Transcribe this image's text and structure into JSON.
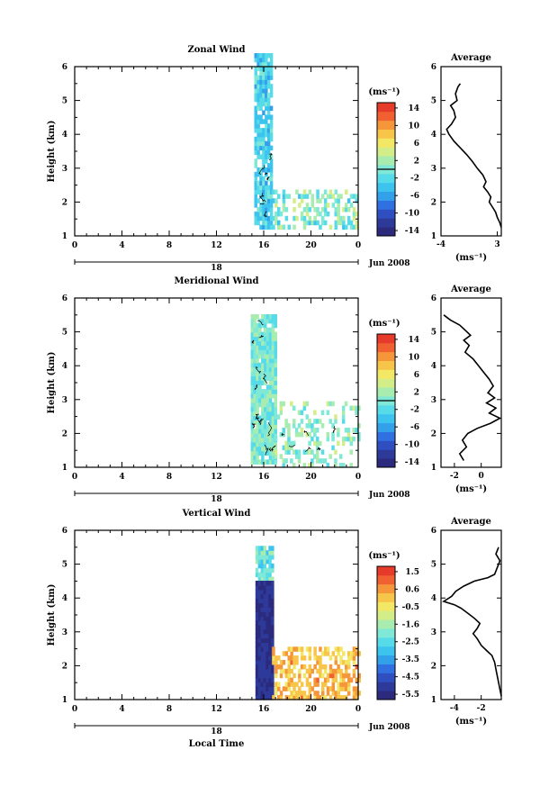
{
  "figure": {
    "bottom_xlabel": "Local Time"
  },
  "colormap": [
    "#2b2a7c",
    "#2d3a9a",
    "#2f4fc0",
    "#3070e0",
    "#33a0ea",
    "#3dc4ee",
    "#57dbe8",
    "#7fe8d6",
    "#a8ecb0",
    "#d3ee88",
    "#f2e866",
    "#f7c54a",
    "#f5963a",
    "#f06030",
    "#e63a2a"
  ],
  "colors": {
    "contour": "#000000",
    "axis": "#000000"
  },
  "chart_data": [
    {
      "type": "heatmap",
      "title": "Zonal Wind",
      "ylabel": "Height (km)",
      "ylim": [
        1,
        6
      ],
      "yticks": [
        "1",
        "2",
        "3",
        "4",
        "5",
        "6"
      ],
      "xlim": [
        0,
        24
      ],
      "xticks": [
        "0",
        "4",
        "8",
        "12",
        "16",
        "20",
        "0"
      ],
      "date_axis": {
        "day": "18",
        "month_label": "Jun 2008"
      },
      "colorbar": {
        "unit": "(ms⁻¹)",
        "ticks": [
          "14",
          "10",
          "6",
          "2",
          "-2",
          "-6",
          "-10",
          "-14"
        ],
        "range": [
          -16,
          16
        ],
        "zero_line": 0
      },
      "fields": [
        {
          "t0": 15.2,
          "t1": 16.7,
          "h0": 1.2,
          "h1": 6.4,
          "base": -3,
          "amp": 3,
          "mask": 0.85
        },
        {
          "t0": 16.7,
          "t1": 23.8,
          "h0": 1.2,
          "h1": 2.3,
          "base": 0,
          "amp": 4,
          "mask": 0.45
        }
      ],
      "contours": [
        {
          "t0": 15.5,
          "t1": 16.6,
          "h0": 1.4,
          "h1": 3.3,
          "n": 8
        }
      ],
      "average": {
        "title": "Average",
        "xlabel": "(ms⁻¹)",
        "xlim": [
          -4,
          3.5
        ],
        "xticks": [
          "-4",
          "3"
        ],
        "xtick_values": [
          -4,
          3
        ],
        "ylim": [
          1,
          6
        ],
        "yticks": [
          "1",
          "2",
          "3",
          "4",
          "5",
          "6"
        ],
        "profile": [
          [
            -1.6,
            5.5
          ],
          [
            -1.9,
            5.4
          ],
          [
            -2.2,
            5.2
          ],
          [
            -2.0,
            5.0
          ],
          [
            -2.8,
            4.85
          ],
          [
            -2.4,
            4.7
          ],
          [
            -2.2,
            4.5
          ],
          [
            -2.7,
            4.3
          ],
          [
            -3.3,
            4.15
          ],
          [
            -3.0,
            4.0
          ],
          [
            -2.4,
            3.8
          ],
          [
            -1.6,
            3.6
          ],
          [
            -0.8,
            3.4
          ],
          [
            -0.1,
            3.2
          ],
          [
            0.5,
            3.0
          ],
          [
            1.2,
            2.8
          ],
          [
            1.6,
            2.6
          ],
          [
            1.3,
            2.45
          ],
          [
            1.8,
            2.3
          ],
          [
            2.2,
            2.15
          ],
          [
            2.0,
            2.0
          ],
          [
            2.4,
            1.85
          ],
          [
            2.8,
            1.7
          ],
          [
            3.0,
            1.55
          ],
          [
            3.3,
            1.4
          ],
          [
            3.5,
            1.25
          ]
        ]
      }
    },
    {
      "type": "heatmap",
      "title": "Meridional Wind",
      "ylabel": "Height (km)",
      "ylim": [
        1,
        6
      ],
      "yticks": [
        "1",
        "2",
        "3",
        "4",
        "5",
        "6"
      ],
      "xlim": [
        0,
        24
      ],
      "xticks": [
        "0",
        "4",
        "8",
        "12",
        "16",
        "20",
        "0"
      ],
      "date_axis": {
        "day": "18",
        "month_label": "Jun 2008"
      },
      "colorbar": {
        "unit": "(ms⁻¹)",
        "ticks": [
          "14",
          "10",
          "6",
          "2",
          "-2",
          "-6",
          "-10",
          "-14"
        ],
        "range": [
          -16,
          16
        ],
        "zero_line": 0
      },
      "fields": [
        {
          "t0": 14.9,
          "t1": 16.9,
          "h0": 1.1,
          "h1": 5.5,
          "base": 0,
          "amp": 3,
          "mask": 0.95
        },
        {
          "t0": 16.9,
          "t1": 24.0,
          "h0": 1.0,
          "h1": 2.9,
          "base": 1,
          "amp": 3,
          "mask": 0.3
        }
      ],
      "contours": [
        {
          "t0": 15.1,
          "t1": 16.8,
          "h0": 1.2,
          "h1": 5.4,
          "n": 14
        },
        {
          "t0": 17.5,
          "t1": 22.0,
          "h0": 1.2,
          "h1": 2.2,
          "n": 6
        }
      ],
      "average": {
        "title": "Average",
        "xlabel": "(ms⁻¹)",
        "xlim": [
          -3,
          1.5
        ],
        "xticks": [
          "-2",
          "0"
        ],
        "xtick_values": [
          -2,
          0
        ],
        "ylim": [
          1,
          6
        ],
        "yticks": [
          "1",
          "2",
          "3",
          "4",
          "5",
          "6"
        ],
        "profile": [
          [
            -2.8,
            5.5
          ],
          [
            -2.3,
            5.35
          ],
          [
            -1.6,
            5.2
          ],
          [
            -1.2,
            5.05
          ],
          [
            -0.8,
            4.9
          ],
          [
            -1.3,
            4.75
          ],
          [
            -0.9,
            4.6
          ],
          [
            -1.2,
            4.4
          ],
          [
            -0.6,
            4.2
          ],
          [
            -0.2,
            4.0
          ],
          [
            0.2,
            3.8
          ],
          [
            0.6,
            3.6
          ],
          [
            0.9,
            3.4
          ],
          [
            0.5,
            3.2
          ],
          [
            1.0,
            3.05
          ],
          [
            0.4,
            2.9
          ],
          [
            1.1,
            2.75
          ],
          [
            0.6,
            2.6
          ],
          [
            1.4,
            2.45
          ],
          [
            0.7,
            2.3
          ],
          [
            -0.3,
            2.15
          ],
          [
            -1.0,
            2.0
          ],
          [
            -1.4,
            1.8
          ],
          [
            -1.1,
            1.6
          ],
          [
            -1.6,
            1.4
          ],
          [
            -1.3,
            1.2
          ]
        ]
      }
    },
    {
      "type": "heatmap",
      "title": "Vertical Wind",
      "ylabel": "Height (km)",
      "ylim": [
        1,
        6
      ],
      "yticks": [
        "1",
        "2",
        "3",
        "4",
        "5",
        "6"
      ],
      "xlim": [
        0,
        24
      ],
      "xticks": [
        "0",
        "4",
        "8",
        "12",
        "16",
        "20",
        "0"
      ],
      "xlabel": "Local Time",
      "date_axis": {
        "day": "18",
        "month_label": "Jun 2008"
      },
      "colorbar": {
        "unit": "(ms⁻¹)",
        "ticks": [
          "1.5",
          "0.6",
          "-0.5",
          "-1.6",
          "-2.5",
          "-3.5",
          "-4.5",
          "-5.5"
        ],
        "range": [
          -6,
          2
        ]
      },
      "fields": [
        {
          "t0": 15.3,
          "t1": 16.7,
          "h0": 4.5,
          "h1": 5.5,
          "base": -2.3,
          "amp": 0.8,
          "mask": 0.9
        },
        {
          "t0": 15.3,
          "t1": 16.7,
          "h0": 1.0,
          "h1": 4.5,
          "base": -5.4,
          "amp": 0.4,
          "mask": 1.0
        },
        {
          "t0": 16.7,
          "t1": 24.0,
          "h0": 1.0,
          "h1": 2.5,
          "base": 0.3,
          "amp": 0.7,
          "mask": 0.55
        }
      ],
      "contours": [],
      "average": {
        "title": "Average",
        "xlabel": "(ms⁻¹)",
        "xlim": [
          -5,
          -0.5
        ],
        "xticks": [
          "-4",
          "-2"
        ],
        "xtick_values": [
          -4,
          -2
        ],
        "ylim": [
          1,
          6
        ],
        "yticks": [
          "1",
          "2",
          "3",
          "4",
          "5",
          "6"
        ],
        "profile": [
          [
            -0.7,
            5.5
          ],
          [
            -0.9,
            5.3
          ],
          [
            -0.6,
            5.1
          ],
          [
            -0.8,
            4.9
          ],
          [
            -1.0,
            4.7
          ],
          [
            -1.5,
            4.6
          ],
          [
            -2.5,
            4.5
          ],
          [
            -3.3,
            4.35
          ],
          [
            -3.9,
            4.2
          ],
          [
            -4.2,
            4.05
          ],
          [
            -4.8,
            3.9
          ],
          [
            -4.0,
            3.8
          ],
          [
            -3.5,
            3.7
          ],
          [
            -3.0,
            3.55
          ],
          [
            -2.5,
            3.4
          ],
          [
            -2.1,
            3.25
          ],
          [
            -2.3,
            3.1
          ],
          [
            -2.6,
            2.95
          ],
          [
            -2.3,
            2.8
          ],
          [
            -2.0,
            2.6
          ],
          [
            -1.6,
            2.45
          ],
          [
            -1.2,
            2.3
          ],
          [
            -1.0,
            2.1
          ],
          [
            -0.9,
            1.9
          ],
          [
            -0.8,
            1.7
          ],
          [
            -0.7,
            1.5
          ],
          [
            -0.6,
            1.3
          ],
          [
            -0.5,
            1.1
          ]
        ]
      }
    }
  ]
}
